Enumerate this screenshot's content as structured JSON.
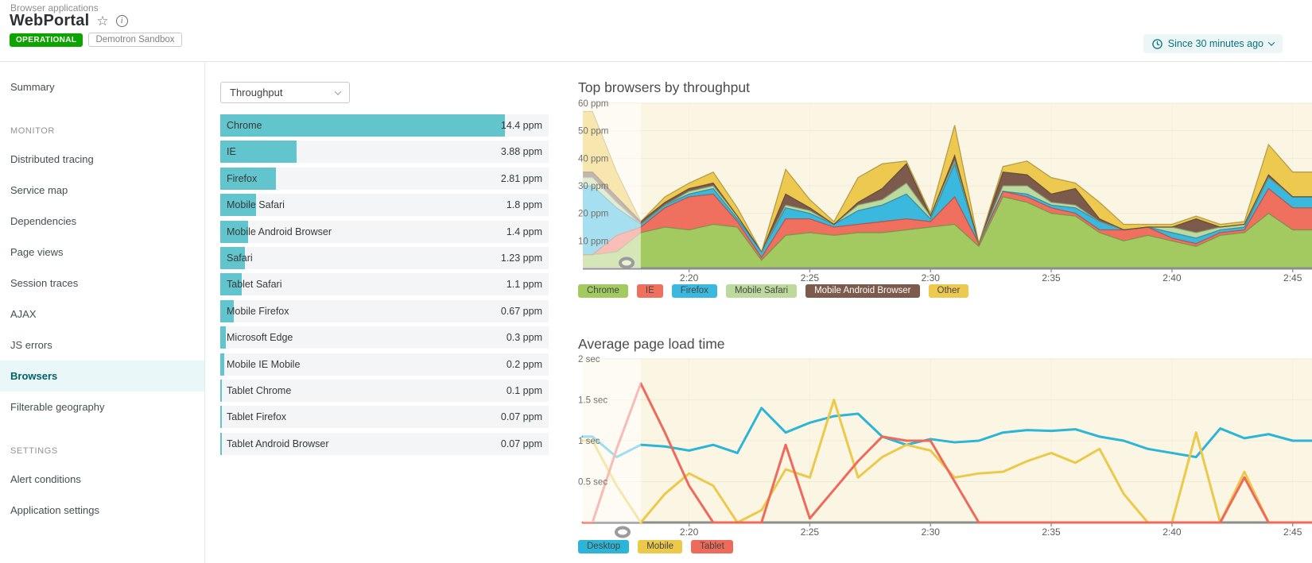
{
  "header": {
    "breadcrumb": "Browser applications",
    "title": "WebPortal",
    "status_badge": "OPERATIONAL",
    "env_tag": "Demotron Sandbox",
    "time_picker": "Since 30 minutes ago"
  },
  "sidebar": {
    "top_items": [
      "Summary"
    ],
    "monitor_label": "MONITOR",
    "monitor_items": [
      "Distributed tracing",
      "Service map",
      "Dependencies",
      "Page views",
      "Session traces",
      "AJAX",
      "JS errors",
      "Browsers",
      "Filterable geography"
    ],
    "settings_label": "SETTINGS",
    "settings_items": [
      "Alert conditions",
      "Application settings"
    ],
    "selected": "Browsers"
  },
  "panel": {
    "dropdown_value": "Throughput",
    "unit": "ppm",
    "max_value": 14.4,
    "bar_color": "#62c4cc",
    "rows": [
      {
        "label": "Chrome",
        "value": 14.4,
        "value_label": "14.4 ppm"
      },
      {
        "label": "IE",
        "value": 3.88,
        "value_label": "3.88 ppm"
      },
      {
        "label": "Firefox",
        "value": 2.81,
        "value_label": "2.81 ppm"
      },
      {
        "label": "Mobile Safari",
        "value": 1.8,
        "value_label": "1.8 ppm"
      },
      {
        "label": "Mobile Android Browser",
        "value": 1.4,
        "value_label": "1.4 ppm"
      },
      {
        "label": "Safari",
        "value": 1.23,
        "value_label": "1.23 ppm"
      },
      {
        "label": "Tablet Safari",
        "value": 1.1,
        "value_label": "1.1 ppm"
      },
      {
        "label": "Mobile Firefox",
        "value": 0.67,
        "value_label": "0.67 ppm"
      },
      {
        "label": "Microsoft Edge",
        "value": 0.3,
        "value_label": "0.3 ppm"
      },
      {
        "label": "Mobile IE Mobile",
        "value": 0.2,
        "value_label": "0.2 ppm"
      },
      {
        "label": "Tablet Chrome",
        "value": 0.1,
        "value_label": "0.1 ppm"
      },
      {
        "label": "Tablet Firefox",
        "value": 0.07,
        "value_label": "0.07 ppm"
      },
      {
        "label": "Tablet Android Browser",
        "value": 0.07,
        "value_label": "0.07 ppm"
      }
    ]
  },
  "colors": {
    "accent_teal": "#06727d",
    "status_green": "#0ea400",
    "selected_nav_bg": "#eaf7f9",
    "chart_bg": "#fbf6e4"
  },
  "chart_data": [
    {
      "type": "area",
      "stacked": true,
      "title": "Top browsers by throughput",
      "plot_bg": "#fbf6e4",
      "x_unit": "minutes after 2:00",
      "xlim": [
        15.6,
        45.8
      ],
      "x": [
        16,
        17,
        18,
        19,
        20,
        21,
        22,
        23,
        24,
        25,
        26,
        27,
        28,
        29,
        30,
        31,
        32,
        33,
        34,
        35,
        36,
        37,
        38,
        39,
        40,
        41,
        42,
        43,
        44,
        45
      ],
      "x_ticks": [
        20,
        25,
        30,
        35,
        40,
        45
      ],
      "x_tick_labels": [
        "2:20",
        "2:25",
        "2:30",
        "2:35",
        "2:40",
        "2:45"
      ],
      "ylim": [
        0,
        60
      ],
      "y_ticks": [
        60,
        50,
        40,
        30,
        20,
        10
      ],
      "y_tick_labels": [
        "60 ppm",
        "50 ppm",
        "40 ppm",
        "30 ppm",
        "20 ppm",
        "10 ppm"
      ],
      "fade_until": 18,
      "series": [
        {
          "name": "Chrome",
          "color": "#a2ca61",
          "values": [
            5,
            6,
            13,
            15,
            14,
            16,
            15,
            3,
            12,
            13,
            12,
            13,
            13,
            14,
            15,
            16,
            8,
            26,
            24,
            20,
            19,
            13,
            10,
            12,
            10,
            8,
            12,
            13,
            20,
            14
          ]
        },
        {
          "name": "IE",
          "color": "#f0705f",
          "values": [
            0,
            6,
            2,
            7,
            12,
            11,
            2,
            1,
            6,
            5,
            3,
            3,
            4,
            4,
            2,
            10,
            1,
            2,
            2,
            2,
            1,
            1,
            4,
            3,
            1,
            1,
            1,
            1,
            9,
            8
          ]
        },
        {
          "name": "Firefox",
          "color": "#3ab8dd",
          "values": [
            25,
            10,
            1,
            1,
            1,
            2,
            1,
            2,
            4,
            2,
            1,
            5,
            6,
            9,
            1,
            12,
            0,
            0,
            1,
            1,
            2,
            3,
            0,
            0,
            2,
            2,
            1,
            1,
            4,
            4
          ]
        },
        {
          "name": "Mobile Safari",
          "color": "#bcd99e",
          "values": [
            3,
            2,
            0,
            0,
            1,
            1,
            1,
            0,
            1,
            1,
            0,
            2,
            2,
            4,
            1,
            1,
            0,
            2,
            3,
            1,
            1,
            0,
            0,
            0,
            2,
            2,
            1,
            1,
            0,
            0
          ]
        },
        {
          "name": "Mobile Android Browser",
          "color": "#7c5b4c",
          "values": [
            2,
            2,
            1,
            1,
            1,
            1,
            0,
            0,
            4,
            1,
            0,
            1,
            4,
            7,
            0,
            2,
            0,
            5,
            4,
            3,
            6,
            1,
            0,
            0,
            0,
            5,
            0,
            0,
            1,
            0
          ]
        },
        {
          "name": "Other",
          "color": "#edc94f",
          "values": [
            22,
            9,
            0,
            2,
            2,
            4,
            3,
            0,
            9,
            3,
            1,
            9,
            9,
            1,
            1,
            11,
            0,
            2,
            5,
            6,
            2,
            6,
            2,
            1,
            1,
            1,
            1,
            1,
            11,
            9
          ]
        }
      ],
      "legend": [
        {
          "label": "Chrome",
          "color": "#a2ca61"
        },
        {
          "label": "IE",
          "color": "#f0705f"
        },
        {
          "label": "Firefox",
          "color": "#3ab8dd"
        },
        {
          "label": "Mobile Safari",
          "color": "#bcd99e"
        },
        {
          "label": "Mobile Android Browser",
          "color": "#7c5b4c",
          "text_color": "#ffffff"
        },
        {
          "label": "Other",
          "color": "#edc94f"
        }
      ]
    },
    {
      "type": "line",
      "stacked": false,
      "title": "Average page load time",
      "plot_bg": "#fbf6e4",
      "x_unit": "minutes after 2:00",
      "xlim": [
        15.6,
        45.8
      ],
      "x": [
        16,
        17,
        18,
        19,
        20,
        21,
        22,
        23,
        24,
        25,
        26,
        27,
        28,
        29,
        30,
        31,
        32,
        33,
        34,
        35,
        36,
        37,
        38,
        39,
        40,
        41,
        42,
        43,
        44,
        45
      ],
      "x_ticks": [
        20,
        25,
        30,
        35,
        40,
        45
      ],
      "x_tick_labels": [
        "2:20",
        "2:25",
        "2:30",
        "2:35",
        "2:40",
        "2:45"
      ],
      "ylim": [
        0,
        2
      ],
      "y_ticks": [
        2,
        1.5,
        1,
        0.5
      ],
      "y_tick_labels": [
        "2 sec",
        "1.5 sec",
        "1 sec",
        "0.5 sec"
      ],
      "fade_until": 18,
      "series": [
        {
          "name": "Desktop",
          "color": "#2cb5d6",
          "values": [
            1.05,
            0.8,
            0.95,
            0.93,
            0.88,
            0.95,
            0.85,
            1.4,
            1.1,
            1.22,
            1.3,
            1.33,
            1.05,
            0.95,
            1.02,
            0.98,
            1.0,
            1.1,
            1.13,
            1.12,
            1.14,
            1.05,
            1.0,
            0.9,
            0.85,
            0.8,
            1.15,
            1.03,
            1.08,
            1.0
          ]
        },
        {
          "name": "Mobile",
          "color": "#ecc94b",
          "values": [
            1.0,
            0.45,
            0,
            0.35,
            0.6,
            0.45,
            0,
            0.15,
            0.65,
            0.55,
            1.5,
            0.55,
            0.8,
            0.95,
            0.88,
            0.55,
            0.6,
            0.62,
            0.75,
            0.85,
            0.73,
            0.9,
            0.35,
            0,
            0,
            1.1,
            0,
            0.62,
            0,
            0
          ]
        },
        {
          "name": "Tablet",
          "color": "#ee6a5b",
          "values": [
            0,
            0.9,
            1.7,
            1.1,
            0.45,
            0,
            0,
            0,
            0.95,
            0.05,
            0.4,
            0.75,
            1.05,
            1.0,
            1.0,
            0.5,
            0,
            0,
            0,
            0,
            0,
            0,
            0,
            0,
            0,
            0,
            0,
            0.55,
            0,
            0
          ]
        }
      ],
      "legend": [
        {
          "label": "Desktop",
          "color": "#2cb5d6"
        },
        {
          "label": "Mobile",
          "color": "#ecc94b"
        },
        {
          "label": "Tablet",
          "color": "#ee6a5b"
        }
      ]
    }
  ]
}
